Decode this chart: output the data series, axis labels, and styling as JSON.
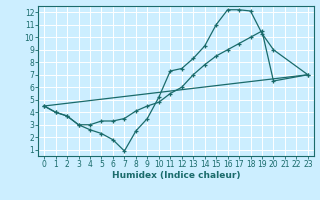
{
  "title": "",
  "xlabel": "Humidex (Indice chaleur)",
  "background_color": "#cceeff",
  "line_color": "#1a6b6b",
  "grid_color": "#ffffff",
  "xlim": [
    -0.5,
    23.5
  ],
  "ylim": [
    0.5,
    12.5
  ],
  "xticks": [
    0,
    1,
    2,
    3,
    4,
    5,
    6,
    7,
    8,
    9,
    10,
    11,
    12,
    13,
    14,
    15,
    16,
    17,
    18,
    19,
    20,
    21,
    22,
    23
  ],
  "yticks": [
    1,
    2,
    3,
    4,
    5,
    6,
    7,
    8,
    9,
    10,
    11,
    12
  ],
  "line1_x": [
    0,
    1,
    2,
    3,
    4,
    5,
    6,
    7,
    8,
    9,
    10,
    11,
    12,
    13,
    14,
    15,
    16,
    17,
    18,
    19,
    20,
    23
  ],
  "line1_y": [
    4.5,
    4.0,
    3.7,
    3.0,
    2.6,
    2.3,
    1.8,
    0.9,
    2.5,
    3.5,
    5.2,
    7.3,
    7.5,
    8.3,
    9.3,
    11.0,
    12.2,
    12.2,
    12.1,
    10.3,
    9.0,
    7.0
  ],
  "line2_x": [
    0,
    1,
    2,
    3,
    4,
    5,
    6,
    7,
    8,
    9,
    10,
    11,
    12,
    13,
    14,
    15,
    16,
    17,
    18,
    19,
    20,
    23
  ],
  "line2_y": [
    4.5,
    4.0,
    3.7,
    3.0,
    3.0,
    3.3,
    3.3,
    3.5,
    4.1,
    4.5,
    4.8,
    5.5,
    6.0,
    7.0,
    7.8,
    8.5,
    9.0,
    9.5,
    10.0,
    10.5,
    6.5,
    7.0
  ],
  "line3_x": [
    0,
    23
  ],
  "line3_y": [
    4.5,
    7.0
  ],
  "tick_fontsize": 5.5,
  "xlabel_fontsize": 6.5
}
